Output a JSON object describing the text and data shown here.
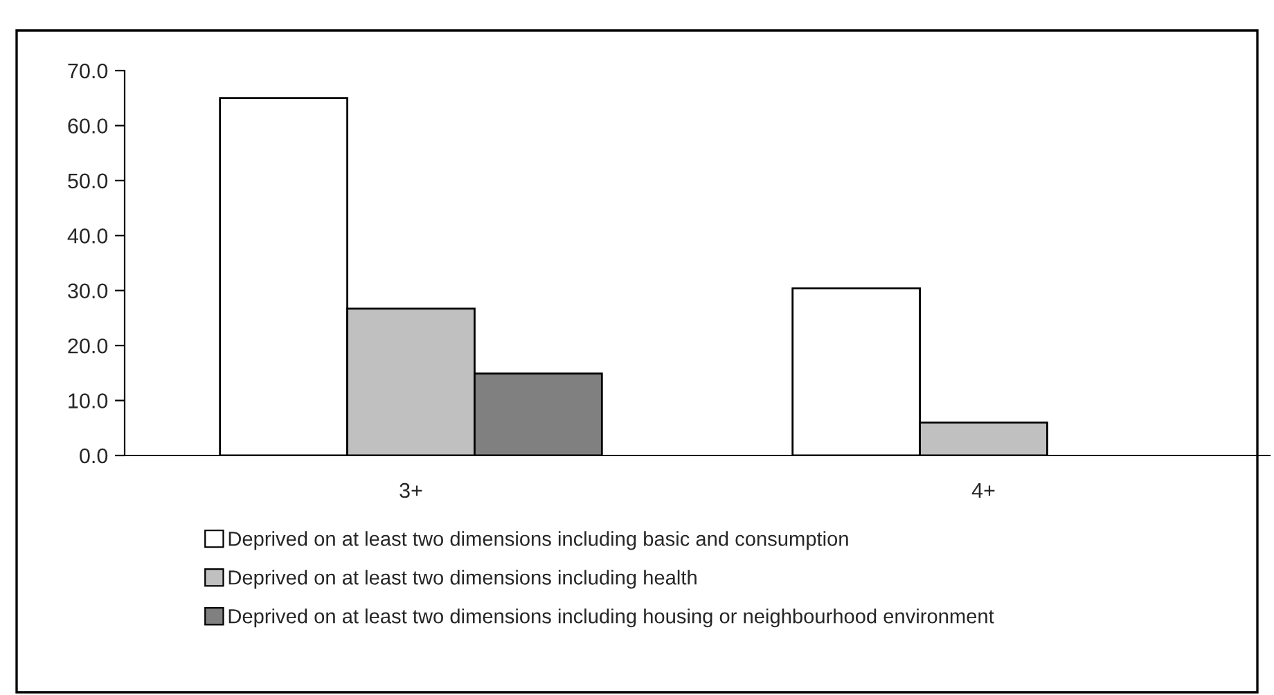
{
  "chart_data": {
    "type": "bar",
    "categories": [
      "3+",
      "4+"
    ],
    "series": [
      {
        "name": "Deprived on at least two dimensions including basic and consumption",
        "color": "#ffffff",
        "values": [
          65.0,
          30.4
        ]
      },
      {
        "name": "Deprived on at least two dimensions including health",
        "color": "#c0c0c0",
        "values": [
          26.7,
          6.0
        ]
      },
      {
        "name": "Deprived on at least two dimensions including housing or neighbourhood environment",
        "color": "#808080",
        "values": [
          14.9,
          null
        ]
      }
    ],
    "ylim": [
      0,
      70
    ],
    "yticks": [
      {
        "value": 0,
        "label": "0.0"
      },
      {
        "value": 10,
        "label": "10.0"
      },
      {
        "value": 20,
        "label": "20.0"
      },
      {
        "value": 30,
        "label": "30.0"
      },
      {
        "value": 40,
        "label": "40.0"
      },
      {
        "value": 50,
        "label": "50.0"
      },
      {
        "value": 60,
        "label": "60.0"
      },
      {
        "value": 70,
        "label": "70.0"
      }
    ],
    "grid": false,
    "legend": "bottom"
  }
}
